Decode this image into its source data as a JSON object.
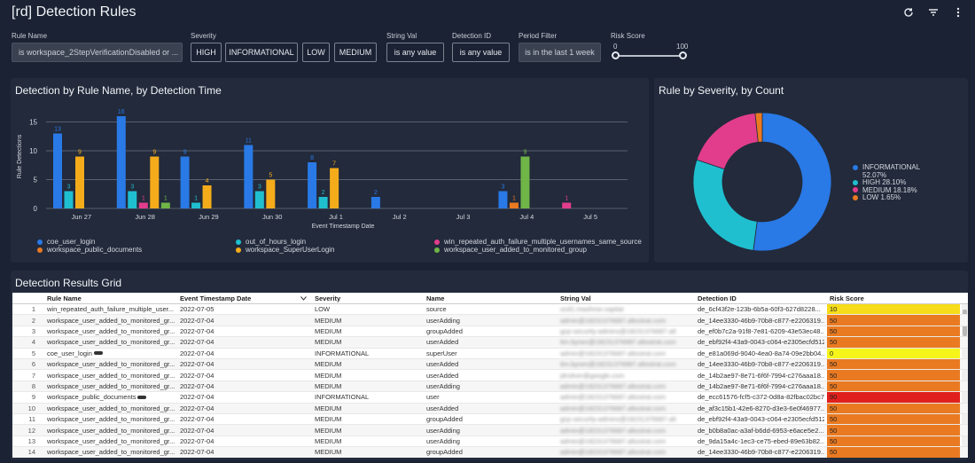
{
  "header": {
    "title": "[rd] Detection Rules",
    "icons": [
      "refresh-icon",
      "filter-icon",
      "more-vert-icon"
    ]
  },
  "filters": {
    "rule_name": {
      "label": "Rule Name",
      "value": "is workspace_2StepVerificationDisabled or ..."
    },
    "severity": {
      "label": "Severity",
      "options": [
        "HIGH",
        "INFORMATIONAL",
        "LOW",
        "MEDIUM"
      ]
    },
    "string_val": {
      "label": "String Val",
      "value": "is any value"
    },
    "detection_id": {
      "label": "Detection ID",
      "value": "is any value"
    },
    "period": {
      "label": "Period Filter",
      "value": "is in the last 1 week"
    },
    "risk_score": {
      "label": "Risk Score",
      "min": "0",
      "max": "100"
    }
  },
  "colors": {
    "coe_user_login": "#2979e6",
    "out_of_hours_login": "#1fbfcf",
    "win_failure": "#e23d8c",
    "public_documents": "#ea7a21",
    "superuser_login": "#f5ac1a",
    "added_monitored": "#6fb547"
  },
  "bar_panel": {
    "title": "Detection by Rule Name, by Detection Time"
  },
  "donut_panel": {
    "title": "Rule by Severity, by Count"
  },
  "grid_panel": {
    "title": "Detection Results Grid"
  },
  "chart_data": [
    {
      "type": "bar",
      "title": "Detection by Rule Name, by Detection Time",
      "xlabel": "Event Timestamp Date",
      "ylabel": "Rule Detections",
      "ylim": [
        0,
        18
      ],
      "yticks": [
        0,
        5,
        10,
        15
      ],
      "categories": [
        "Jun 27",
        "Jun 28",
        "Jun 29",
        "Jun 30",
        "Jul 1",
        "Jul 2",
        "Jul 3",
        "Jul 4",
        "Jul 5"
      ],
      "series": [
        {
          "name": "coe_user_login",
          "values": [
            13,
            16,
            9,
            11,
            8,
            2,
            null,
            3,
            null
          ]
        },
        {
          "name": "out_of_hours_login",
          "values": [
            3,
            3,
            1,
            3,
            2,
            null,
            null,
            null,
            null
          ]
        },
        {
          "name": "win_repeated_auth_failure_multiple_usernames_same_source",
          "values": [
            null,
            1,
            null,
            null,
            null,
            null,
            null,
            null,
            1
          ]
        },
        {
          "name": "workspace_public_documents",
          "values": [
            null,
            null,
            null,
            null,
            null,
            null,
            null,
            1,
            null
          ]
        },
        {
          "name": "workspace_SuperUserLogin",
          "values": [
            9,
            9,
            4,
            5,
            7,
            null,
            null,
            null,
            null
          ]
        },
        {
          "name": "workspace_user_added_to_monitored_group",
          "values": [
            null,
            1,
            null,
            null,
            null,
            null,
            null,
            9,
            null
          ]
        }
      ],
      "legend": [
        "coe_user_login",
        "out_of_hours_login",
        "win_repeated_auth_failure_multiple_usernames_same_source",
        "workspace_public_documents",
        "workspace_SuperUserLogin",
        "workspace_user_added_to_monitored_group"
      ]
    },
    {
      "type": "pie",
      "title": "Rule by Severity, by Count",
      "slices": [
        {
          "name": "INFORMATIONAL",
          "value": 52.07,
          "label": "52.07%",
          "color": "#2979e6"
        },
        {
          "name": "HIGH",
          "value": 28.1,
          "label": "28.10%",
          "color": "#1fbfcf"
        },
        {
          "name": "MEDIUM",
          "value": 18.18,
          "label": "18.18%",
          "color": "#e23d8c"
        },
        {
          "name": "LOW",
          "value": 1.65,
          "label": "1.65%",
          "color": "#ea7a21"
        }
      ],
      "legend_placement": "right"
    }
  ],
  "grid": {
    "columns": [
      "Rule Name",
      "Event Timestamp Date",
      "Severity",
      "Name",
      "String Val",
      "Detection ID",
      "Risk Score"
    ],
    "rows": [
      {
        "n": "1",
        "rule": "win_repeated_auth_failure_multiple_user...",
        "date": "2022-07-05",
        "sev": "LOW",
        "name": "source",
        "sval": "ocd1.mashroe.capital",
        "did": "de_6cf43f2e-123b-6b5a-60f3-627d8228...",
        "risk": "10",
        "rcolor": "#f6dc1a"
      },
      {
        "n": "2",
        "rule": "workspace_user_added_to_monitored_gr...",
        "date": "2022-07-04",
        "sev": "MEDIUM",
        "name": "userAdding",
        "sval": "admin@18231376687.altostrat.com",
        "did": "de_14ee3330-46b9-70b8-c877-e2206319...",
        "risk": "50",
        "rcolor": "#ea7a21"
      },
      {
        "n": "3",
        "rule": "workspace_user_added_to_monitored_gr...",
        "date": "2022-07-04",
        "sev": "MEDIUM",
        "name": "groupAdded",
        "sval": "gcp-security-admins@18231376687.alt",
        "did": "de_ef0b7c2a-91f8-7e81-6209-43e53ec48...",
        "risk": "50",
        "rcolor": "#ea7a21"
      },
      {
        "n": "4",
        "rule": "workspace_user_added_to_monitored_gr...",
        "date": "2022-07-04",
        "sev": "MEDIUM",
        "name": "userAdded",
        "sval": "tim.bynes@18231376687.altostrat.com",
        "did": "de_ebf92f4-43a9-0043-c064-e2305ecfd512",
        "risk": "50",
        "rcolor": "#ea7a21"
      },
      {
        "n": "5",
        "rule": "coe_user_login",
        "date": "2022-07-04",
        "sev": "INFORMATIONAL",
        "name": "superUser",
        "sval": "admin@18231376687.altostrat.com",
        "did": "de_e81a069d-9040-4ea0-8a74-09e2bb04...",
        "risk": "0",
        "rcolor": "#f6f51a"
      },
      {
        "n": "6",
        "rule": "workspace_user_added_to_monitored_gr...",
        "date": "2022-07-04",
        "sev": "MEDIUM",
        "name": "userAdded",
        "sval": "tim.bynes@18231376687.altostrat.com",
        "did": "de_14ee3330-46b9-70b8-c877-e2206319...",
        "risk": "50",
        "rcolor": "#ea7a21"
      },
      {
        "n": "7",
        "rule": "workspace_user_added_to_monitored_gr...",
        "date": "2022-07-04",
        "sev": "MEDIUM",
        "name": "userAdded",
        "sval": "jdrsilver@google.com",
        "did": "de_14b2ae97-8e71-6f6f-7994-c276aaa18...",
        "risk": "50",
        "rcolor": "#ea7a21"
      },
      {
        "n": "8",
        "rule": "workspace_user_added_to_monitored_gr...",
        "date": "2022-07-04",
        "sev": "MEDIUM",
        "name": "userAdding",
        "sval": "admin@18231376687.altostrat.com",
        "did": "de_14b2ae97-8e71-6f6f-7994-c276aaa18...",
        "risk": "50",
        "rcolor": "#ea7a21"
      },
      {
        "n": "9",
        "rule": "workspace_public_documents",
        "date": "2022-07-04",
        "sev": "INFORMATIONAL",
        "name": "user",
        "sval": "admin@18231376687.altostrat.com",
        "did": "de_ecc61576-fcf5-c372-0d8a-82fbac02bc7f",
        "risk": "90",
        "rcolor": "#e0201c"
      },
      {
        "n": "10",
        "rule": "workspace_user_added_to_monitored_gr...",
        "date": "2022-07-04",
        "sev": "MEDIUM",
        "name": "userAdded",
        "sval": "admin@18231376687.altostrat.com",
        "did": "de_af3c15b1-42e6-8270-d3e3-6e0f46977...",
        "risk": "50",
        "rcolor": "#ea7a21"
      },
      {
        "n": "11",
        "rule": "workspace_user_added_to_monitored_gr...",
        "date": "2022-07-04",
        "sev": "MEDIUM",
        "name": "groupAdded",
        "sval": "gcp-security-admins@18231376687.alt",
        "did": "de_ebf92f4-43a9-0043-c064-e2305ecfd512",
        "risk": "50",
        "rcolor": "#ea7a21"
      },
      {
        "n": "12",
        "rule": "workspace_user_added_to_monitored_gr...",
        "date": "2022-07-04",
        "sev": "MEDIUM",
        "name": "userAdding",
        "sval": "admin@18231376687.altostrat.com",
        "did": "de_b0b8a0ac-a3af-b6dd-6953-e6ace5e2...",
        "risk": "50",
        "rcolor": "#ea7a21"
      },
      {
        "n": "13",
        "rule": "workspace_user_added_to_monitored_gr...",
        "date": "2022-07-04",
        "sev": "MEDIUM",
        "name": "userAdding",
        "sval": "admin@18231376687.altostrat.com",
        "did": "de_9da15a4c-1ec3-ce75-ebed-89e63b82...",
        "risk": "50",
        "rcolor": "#ea7a21"
      },
      {
        "n": "14",
        "rule": "workspace_user_added_to_monitored_gr...",
        "date": "2022-07-04",
        "sev": "MEDIUM",
        "name": "groupAdded",
        "sval": "admin@18231376687.altostrat.com",
        "did": "de_14ee3330-46b9-70b8-c877-e2206319...",
        "risk": "50",
        "rcolor": "#ea7a21"
      }
    ]
  }
}
